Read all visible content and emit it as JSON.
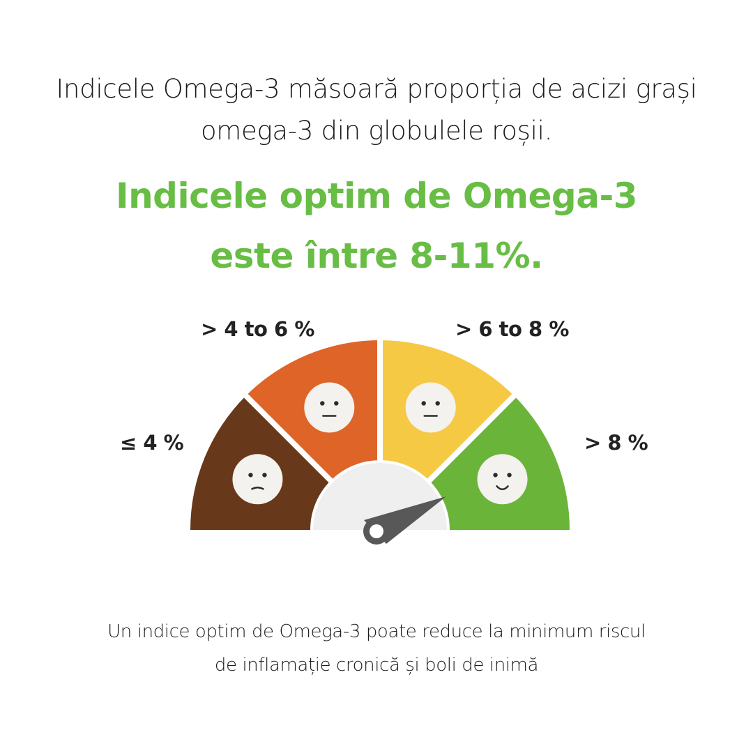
{
  "intro": {
    "line1": "Indicele Omega-3 măsoară proporția de acizi grași",
    "line2": "omega-3 din globulele roșii."
  },
  "highlight": {
    "line1": "Indicele optim de Omega-3",
    "line2": "este între 8-11%."
  },
  "gauge": {
    "segments": [
      {
        "label": "≤ 4 %",
        "color": "#67381a",
        "face": "sad"
      },
      {
        "label": "> 4 to 6 %",
        "color": "#df6428",
        "face": "neutral"
      },
      {
        "label": "> 6 to 8 %",
        "color": "#f6c944",
        "face": "neutral"
      },
      {
        "label": "> 8 %",
        "color": "#6bb43a",
        "face": "happy"
      }
    ],
    "hub_color": "#f0efef",
    "needle_color": "#585858"
  },
  "footer": {
    "line1": "Un indice optim de Omega-3 poate reduce la minimum riscul",
    "line2": "de inflamație cronică și boli de inimă"
  }
}
